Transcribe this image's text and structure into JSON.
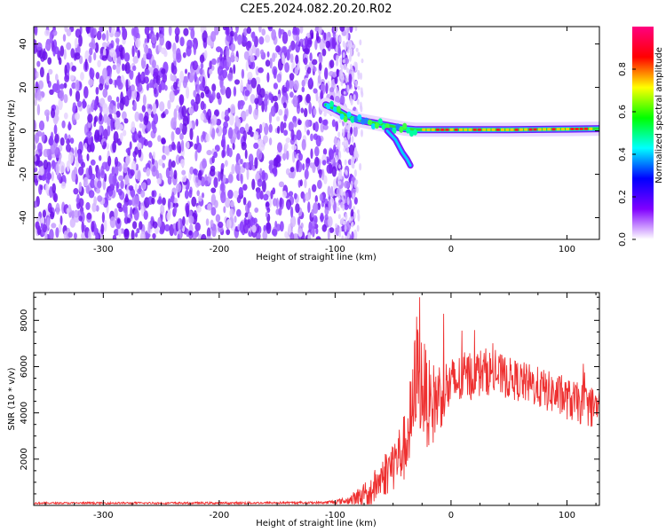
{
  "title": "C2E5.2024.082.20.20.R02",
  "chart_data": [
    {
      "type": "heatmap",
      "name": "spectrogram",
      "xlabel": "Height of straight line (km)",
      "ylabel": "Frequency (Hz)",
      "xlim": [
        -360,
        128
      ],
      "ylim": [
        -50,
        48
      ],
      "xticks": [
        -300,
        -200,
        -100,
        0,
        100
      ],
      "yticks": [
        -40,
        -20,
        0,
        20,
        40
      ],
      "noise_region": {
        "x": [
          -360,
          -88
        ],
        "y": [
          -50,
          48
        ]
      },
      "signal_trace": [
        {
          "x": -108,
          "y": 12
        },
        {
          "x": -100,
          "y": 10
        },
        {
          "x": -90,
          "y": 7
        },
        {
          "x": -80,
          "y": 5
        },
        {
          "x": -70,
          "y": 4
        },
        {
          "x": -60,
          "y": 3
        },
        {
          "x": -50,
          "y": 2
        },
        {
          "x": -40,
          "y": 1
        },
        {
          "x": -30,
          "y": 0.5
        },
        {
          "x": -20,
          "y": 0.5
        },
        {
          "x": 0,
          "y": 0.5
        },
        {
          "x": 50,
          "y": 0.5
        },
        {
          "x": 100,
          "y": 0.8
        },
        {
          "x": 128,
          "y": 1
        }
      ],
      "signal_branch": [
        {
          "x": -55,
          "y": 0
        },
        {
          "x": -48,
          "y": -4
        },
        {
          "x": -42,
          "y": -10
        },
        {
          "x": -38,
          "y": -13
        },
        {
          "x": -35,
          "y": -16
        }
      ],
      "colorbar": {
        "label": "Normalized spectral amplitude",
        "range": [
          0,
          1
        ],
        "ticks": [
          0.0,
          0.2,
          0.4,
          0.6,
          0.8
        ],
        "tick_labels": [
          "0.0",
          "0.2",
          "0.4",
          "0.6",
          "0.8"
        ],
        "colors": [
          "#ffffff",
          "#8000ff",
          "#0000ff",
          "#00ffff",
          "#00ff00",
          "#ffff00",
          "#ff0000",
          "#ff0080"
        ]
      }
    },
    {
      "type": "line",
      "name": "snr",
      "xlabel": "Height of straight line (km)",
      "ylabel": "SNR (10 * v/v)",
      "xlim": [
        -360,
        128
      ],
      "ylim": [
        0,
        9200
      ],
      "xticks": [
        -300,
        -200,
        -100,
        0,
        100
      ],
      "yticks": [
        2000,
        4000,
        6000,
        8000
      ],
      "color": "#ee3030",
      "envelope": [
        {
          "x": -360,
          "y": 100
        },
        {
          "x": -200,
          "y": 100
        },
        {
          "x": -110,
          "y": 120
        },
        {
          "x": -90,
          "y": 200
        },
        {
          "x": -70,
          "y": 500
        },
        {
          "x": -60,
          "y": 1200
        },
        {
          "x": -50,
          "y": 1800
        },
        {
          "x": -40,
          "y": 2500
        },
        {
          "x": -33,
          "y": 4000
        },
        {
          "x": -30,
          "y": 6000
        },
        {
          "x": -25,
          "y": 5200
        },
        {
          "x": -18,
          "y": 4200
        },
        {
          "x": -10,
          "y": 4800
        },
        {
          "x": 0,
          "y": 5200
        },
        {
          "x": 15,
          "y": 5600
        },
        {
          "x": 30,
          "y": 5800
        },
        {
          "x": 50,
          "y": 5500
        },
        {
          "x": 70,
          "y": 5200
        },
        {
          "x": 90,
          "y": 4800
        },
        {
          "x": 110,
          "y": 4400
        },
        {
          "x": 128,
          "y": 4200
        }
      ],
      "noise_amplitude": [
        {
          "x": -360,
          "y": 40
        },
        {
          "x": -110,
          "y": 50
        },
        {
          "x": -90,
          "y": 150
        },
        {
          "x": -60,
          "y": 900
        },
        {
          "x": -40,
          "y": 1500
        },
        {
          "x": -30,
          "y": 2500
        },
        {
          "x": -15,
          "y": 1800
        },
        {
          "x": 0,
          "y": 1200
        },
        {
          "x": 50,
          "y": 900
        },
        {
          "x": 128,
          "y": 900
        }
      ],
      "peak": {
        "x": -27,
        "y": 9000
      }
    }
  ]
}
